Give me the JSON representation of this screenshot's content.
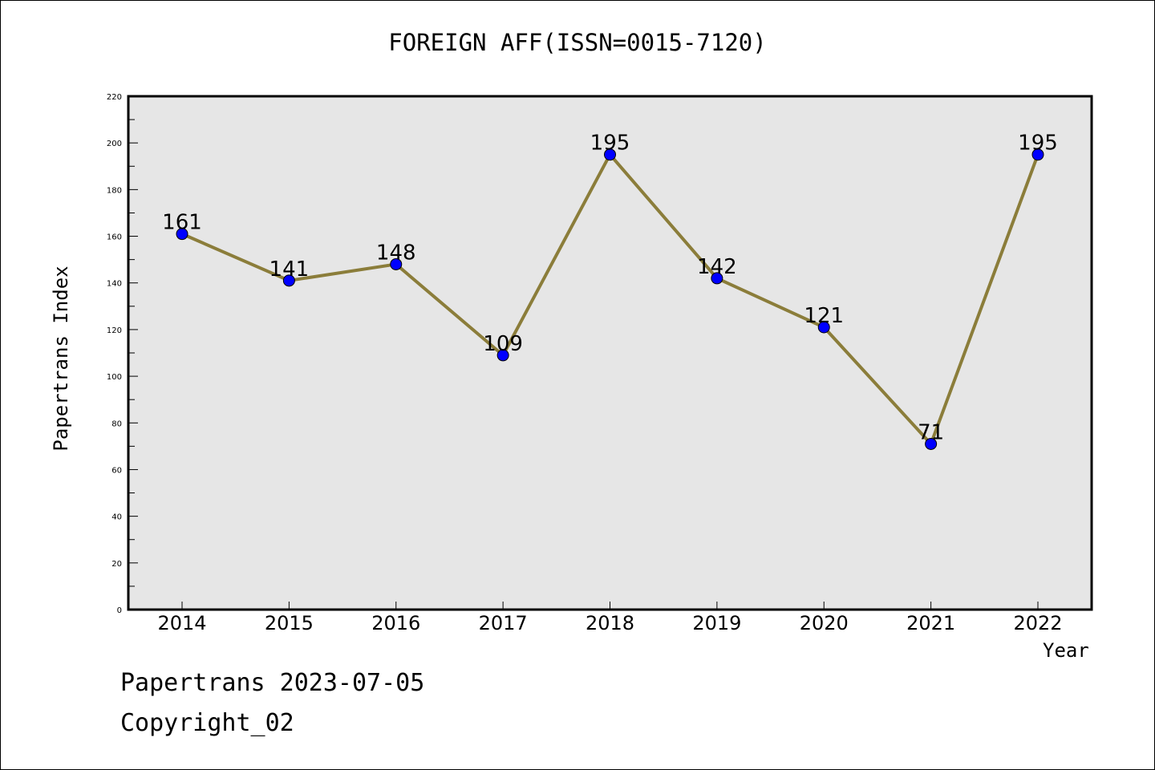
{
  "title": "FOREIGN AFF(ISSN=0015-7120)",
  "footer": {
    "line1": "Papertrans 2023-07-05",
    "line2": "Copyright_02"
  },
  "chart_data": {
    "type": "line",
    "title": "FOREIGN AFF(ISSN=0015-7120)",
    "xlabel": "Year",
    "ylabel": "Papertrans Index",
    "x": [
      "2014",
      "2015",
      "2016",
      "2017",
      "2018",
      "2019",
      "2020",
      "2021",
      "2022"
    ],
    "series": [
      {
        "values": [
          161,
          141,
          148,
          109,
          195,
          142,
          121,
          71,
          195
        ],
        "line_color": "#8B7D3A",
        "marker_color": "#0000FF"
      }
    ],
    "ylim": [
      0,
      220
    ],
    "yticks": [
      0,
      20,
      40,
      60,
      80,
      100,
      120,
      140,
      160,
      180,
      200,
      220
    ],
    "plot_background": "#E6E6E6",
    "grid": false,
    "legend": "none",
    "data_labels": true
  }
}
